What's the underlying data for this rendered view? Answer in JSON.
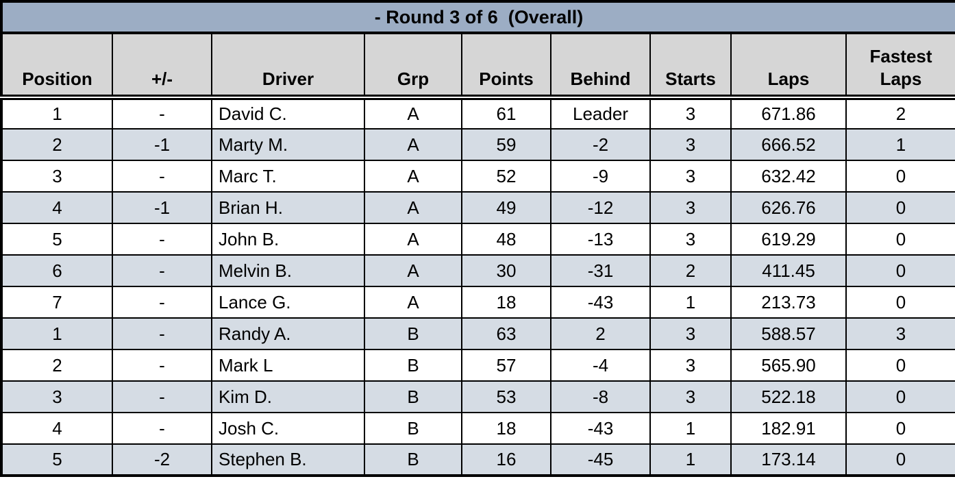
{
  "title": "- Round 3 of 6  (Overall)",
  "colors": {
    "title_bg": "#9CADC4",
    "header_bg": "#D6D6D6",
    "row_bg": "#FFFFFF",
    "row_alt_bg": "#D5DCE4",
    "border": "#000000",
    "text": "#000000"
  },
  "table": {
    "columns": [
      "Position",
      "+/-",
      "Driver",
      "Grp",
      "Points",
      "Behind",
      "Starts",
      "Laps",
      "Fastest Laps"
    ],
    "column_keys": [
      "position",
      "change",
      "driver",
      "grp",
      "points",
      "behind",
      "starts",
      "laps",
      "fastest_laps"
    ],
    "rows": [
      {
        "position": "1",
        "change": "-",
        "driver": "David C.",
        "grp": "A",
        "points": "61",
        "behind": "Leader",
        "starts": "3",
        "laps": "671.86",
        "fastest_laps": "2"
      },
      {
        "position": "2",
        "change": "-1",
        "driver": "Marty M.",
        "grp": "A",
        "points": "59",
        "behind": "-2",
        "starts": "3",
        "laps": "666.52",
        "fastest_laps": "1"
      },
      {
        "position": "3",
        "change": "-",
        "driver": "Marc T.",
        "grp": "A",
        "points": "52",
        "behind": "-9",
        "starts": "3",
        "laps": "632.42",
        "fastest_laps": "0"
      },
      {
        "position": "4",
        "change": "-1",
        "driver": "Brian H.",
        "grp": "A",
        "points": "49",
        "behind": "-12",
        "starts": "3",
        "laps": "626.76",
        "fastest_laps": "0"
      },
      {
        "position": "5",
        "change": "-",
        "driver": "John B.",
        "grp": "A",
        "points": "48",
        "behind": "-13",
        "starts": "3",
        "laps": "619.29",
        "fastest_laps": "0"
      },
      {
        "position": "6",
        "change": "-",
        "driver": "Melvin B.",
        "grp": "A",
        "points": "30",
        "behind": "-31",
        "starts": "2",
        "laps": "411.45",
        "fastest_laps": "0"
      },
      {
        "position": "7",
        "change": "-",
        "driver": "Lance G.",
        "grp": "A",
        "points": "18",
        "behind": "-43",
        "starts": "1",
        "laps": "213.73",
        "fastest_laps": "0"
      },
      {
        "position": "1",
        "change": "-",
        "driver": "Randy A.",
        "grp": "B",
        "points": "63",
        "behind": "2",
        "starts": "3",
        "laps": "588.57",
        "fastest_laps": "3"
      },
      {
        "position": "2",
        "change": "-",
        "driver": "Mark L",
        "grp": "B",
        "points": "57",
        "behind": "-4",
        "starts": "3",
        "laps": "565.90",
        "fastest_laps": "0"
      },
      {
        "position": "3",
        "change": "-",
        "driver": "Kim D.",
        "grp": "B",
        "points": "53",
        "behind": "-8",
        "starts": "3",
        "laps": "522.18",
        "fastest_laps": "0"
      },
      {
        "position": "4",
        "change": "-",
        "driver": "Josh C.",
        "grp": "B",
        "points": "18",
        "behind": "-43",
        "starts": "1",
        "laps": "182.91",
        "fastest_laps": "0"
      },
      {
        "position": "5",
        "change": "-2",
        "driver": "Stephen B.",
        "grp": "B",
        "points": "16",
        "behind": "-45",
        "starts": "1",
        "laps": "173.14",
        "fastest_laps": "0"
      }
    ]
  }
}
